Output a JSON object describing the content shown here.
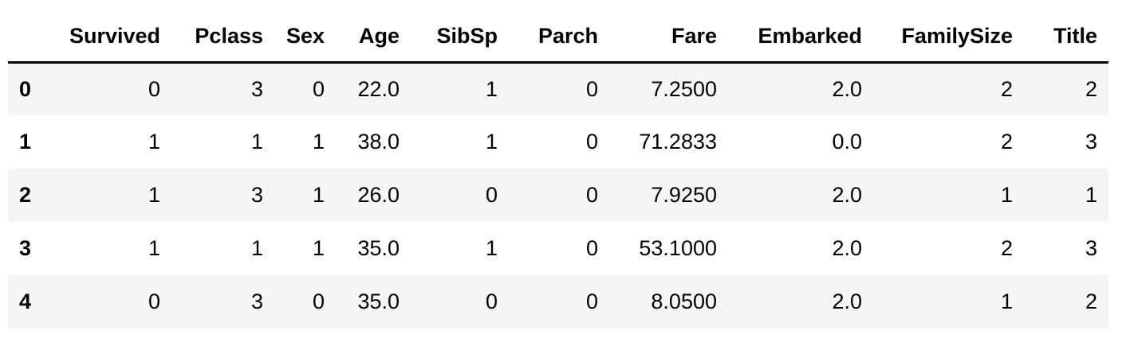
{
  "dataframe": {
    "index_header": "",
    "columns": [
      "Survived",
      "Pclass",
      "Sex",
      "Age",
      "SibSp",
      "Parch",
      "Fare",
      "Embarked",
      "FamilySize",
      "Title"
    ],
    "rows": [
      {
        "index": "0",
        "cells": [
          "0",
          "3",
          "0",
          "22.0",
          "1",
          "0",
          "7.2500",
          "2.0",
          "2",
          "2"
        ]
      },
      {
        "index": "1",
        "cells": [
          "1",
          "1",
          "1",
          "38.0",
          "1",
          "0",
          "71.2833",
          "0.0",
          "2",
          "3"
        ]
      },
      {
        "index": "2",
        "cells": [
          "1",
          "3",
          "1",
          "26.0",
          "0",
          "0",
          "7.9250",
          "2.0",
          "1",
          "1"
        ]
      },
      {
        "index": "3",
        "cells": [
          "1",
          "1",
          "1",
          "35.0",
          "1",
          "0",
          "53.1000",
          "2.0",
          "2",
          "3"
        ]
      },
      {
        "index": "4",
        "cells": [
          "0",
          "3",
          "0",
          "35.0",
          "0",
          "0",
          "8.0500",
          "2.0",
          "1",
          "2"
        ]
      }
    ],
    "colors": {
      "stripe": "#f5f5f5",
      "header_rule": "#000000",
      "text": "#000000",
      "background": "#ffffff"
    }
  }
}
